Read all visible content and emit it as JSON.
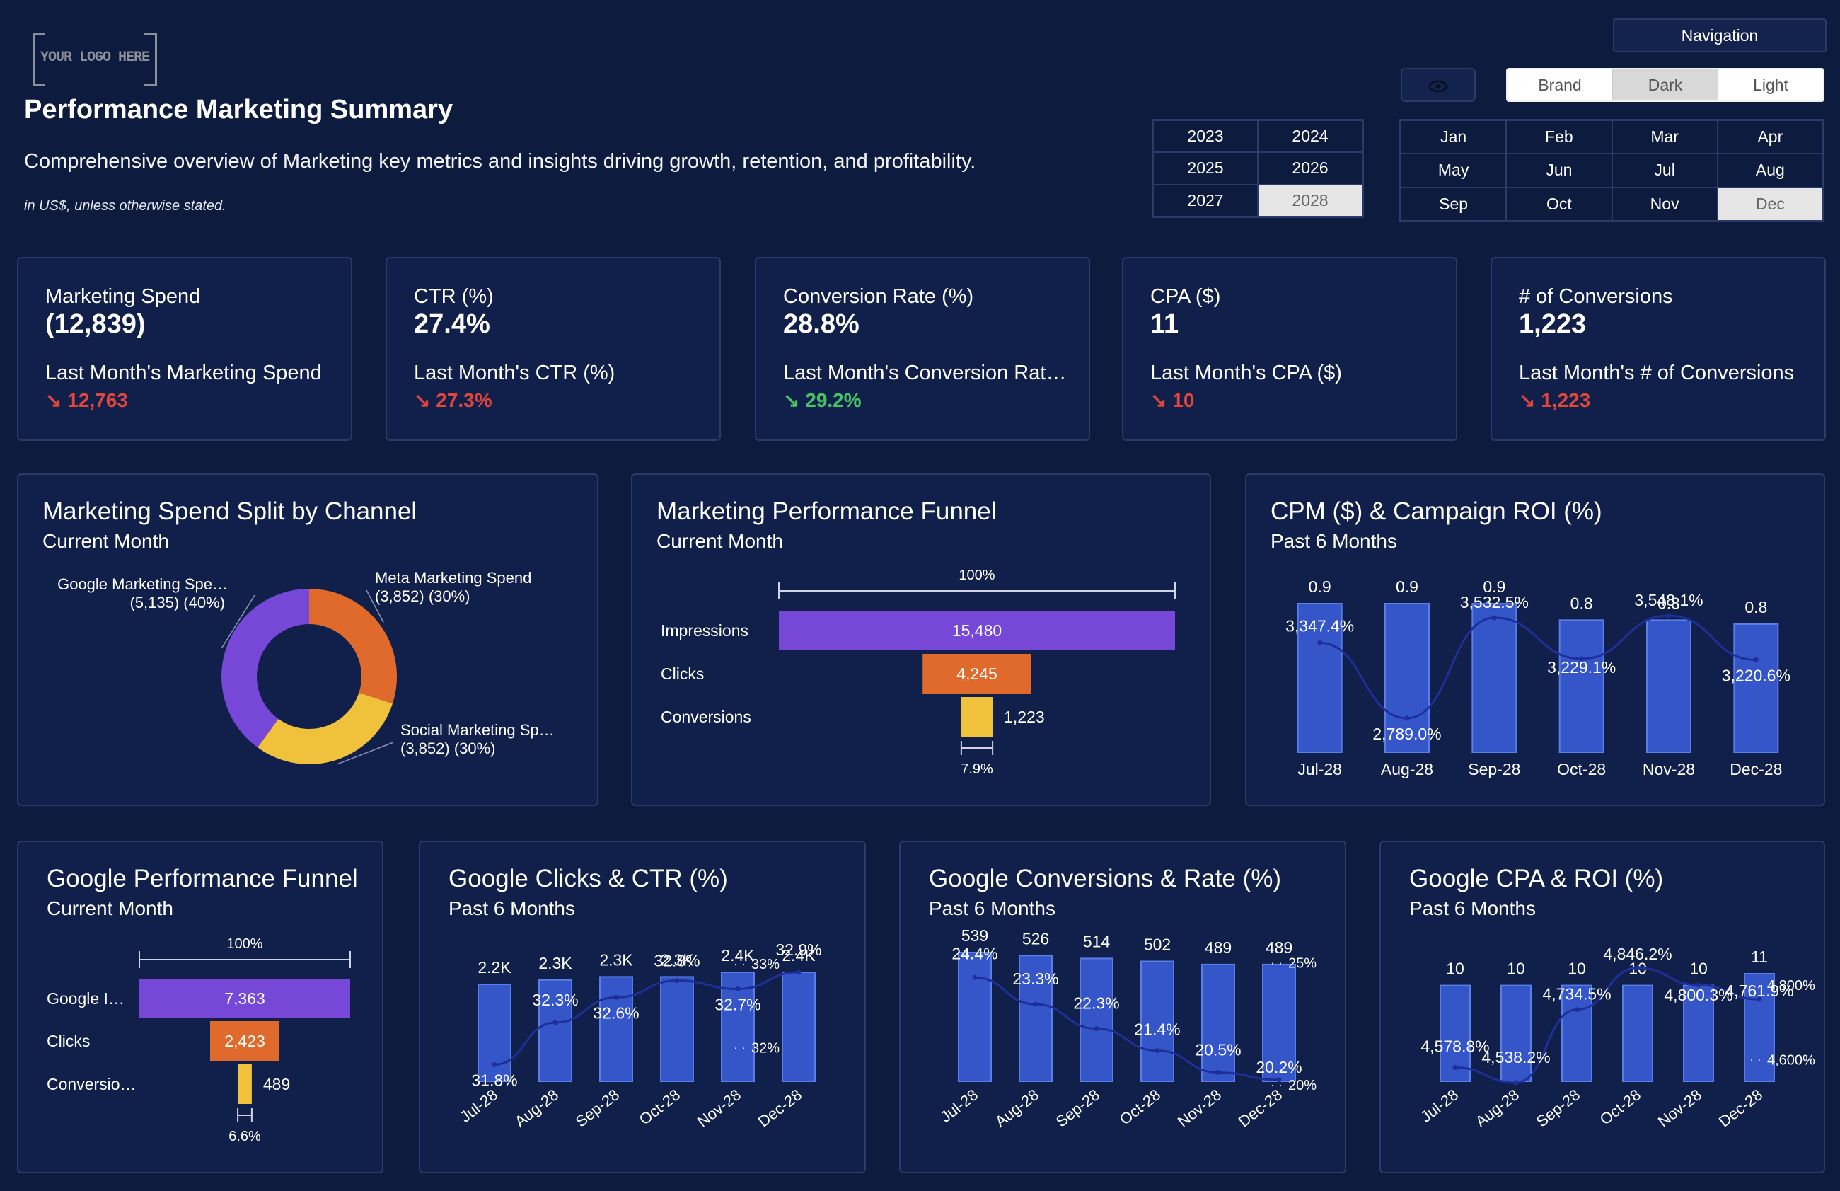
{
  "header": {
    "logo_text": "YOUR LOGO HERE",
    "title": "Performance Marketing Summary",
    "subtitle": "Comprehensive overview of Marketing key metrics and insights driving growth, retention, and profitability.",
    "note": "in US$, unless otherwise stated."
  },
  "controls": {
    "navigation_label": "Navigation",
    "eye_icon": "eye-icon",
    "themes": [
      {
        "label": "Brand",
        "selected": false
      },
      {
        "label": "Dark",
        "selected": true
      },
      {
        "label": "Light",
        "selected": false
      }
    ],
    "years": [
      {
        "label": "2023",
        "selected": false
      },
      {
        "label": "2024",
        "selected": false
      },
      {
        "label": "2025",
        "selected": false
      },
      {
        "label": "2026",
        "selected": false
      },
      {
        "label": "2027",
        "selected": false
      },
      {
        "label": "2028",
        "selected": true
      }
    ],
    "months": [
      {
        "label": "Jan",
        "selected": false
      },
      {
        "label": "Feb",
        "selected": false
      },
      {
        "label": "Mar",
        "selected": false
      },
      {
        "label": "Apr",
        "selected": false
      },
      {
        "label": "May",
        "selected": false
      },
      {
        "label": "Jun",
        "selected": false
      },
      {
        "label": "Jul",
        "selected": false
      },
      {
        "label": "Aug",
        "selected": false
      },
      {
        "label": "Sep",
        "selected": false
      },
      {
        "label": "Oct",
        "selected": false
      },
      {
        "label": "Nov",
        "selected": false
      },
      {
        "label": "Dec",
        "selected": true
      }
    ]
  },
  "kpis": [
    {
      "label": "Marketing Spend",
      "value": "(12,839)",
      "prev_label": "Last Month's Marketing Spend",
      "prev_value": "↘ 12,763",
      "trend": "red"
    },
    {
      "label": "CTR (%)",
      "value": "27.4%",
      "prev_label": "Last Month's CTR (%)",
      "prev_value": "↘ 27.3%",
      "trend": "red"
    },
    {
      "label": "Conversion Rate (%)",
      "value": "28.8%",
      "prev_label": "Last Month's Conversion Rate (%)",
      "prev_value": "↘ 29.2%",
      "trend": "green"
    },
    {
      "label": "CPA ($)",
      "value": "11",
      "prev_label": "Last Month's CPA ($)",
      "prev_value": "↘ 10",
      "trend": "red"
    },
    {
      "label": "# of Conversions",
      "value": "1,223",
      "prev_label": "Last Month's # of Conversions",
      "prev_value": "↘ 1,223",
      "trend": "red"
    }
  ],
  "colors": {
    "purple": "#7747d8",
    "orange": "#e06a2b",
    "yellow": "#f0c23b",
    "bar": "#3456c9",
    "bar_border": "#5a7de6",
    "line": "#1f2f9a",
    "red": "#e0463c",
    "green": "#46c463"
  },
  "chart_data": [
    {
      "id": "spend_split",
      "type": "pie",
      "title": "Marketing Spend Split by Channel",
      "subtitle": "Current Month",
      "slices": [
        {
          "name": "Meta Marketing Spend",
          "label": "Meta Marketing Spend",
          "value": 3852,
          "detail": "(3,852) (30%)",
          "color": "#e06a2b"
        },
        {
          "name": "Social Marketing Spend",
          "label": "Social Marketing Sp…",
          "value": 3852,
          "detail": "(3,852) (30%)",
          "color": "#f0c23b"
        },
        {
          "name": "Google Marketing Spend",
          "label": "Google Marketing Spe…",
          "value": 5135,
          "detail": "(5,135) (40%)",
          "color": "#7747d8"
        }
      ]
    },
    {
      "id": "funnel",
      "type": "bar",
      "title": "Marketing Performance Funnel",
      "subtitle": "Current Month",
      "categories": [
        "Impressions",
        "Clicks",
        "Conversions"
      ],
      "values": [
        15480,
        4245,
        1223
      ],
      "labels": [
        "15,480",
        "4,245",
        "1,223"
      ],
      "top_label": "100%",
      "bottom_label": "7.9%",
      "colors": [
        "#7747d8",
        "#e06a2b",
        "#f0c23b"
      ]
    },
    {
      "id": "cpm_roi",
      "type": "bar",
      "title": "CPM ($) & Campaign ROI (%)",
      "subtitle": "Past 6 Months",
      "categories": [
        "Jul-28",
        "Aug-28",
        "Sep-28",
        "Oct-28",
        "Nov-28",
        "Dec-28"
      ],
      "series": [
        {
          "name": "CPM ($)",
          "type": "bar",
          "values": [
            0.9,
            0.9,
            0.9,
            0.8,
            0.8,
            0.8
          ],
          "labels": [
            "0.9",
            "0.9",
            "0.9",
            "0.8",
            "0.8",
            "0.8"
          ]
        },
        {
          "name": "Campaign ROI (%)",
          "type": "line",
          "values": [
            3347.4,
            2789.0,
            3532.5,
            3229.1,
            3548.1,
            3220.6
          ],
          "labels": [
            "3,347.4%",
            "2,789.0%",
            "3,532.5%",
            "3,229.1%",
            "3,548.1%",
            "3,220.6%"
          ]
        }
      ]
    },
    {
      "id": "google_funnel",
      "type": "bar",
      "title": "Google Performance Funnel",
      "subtitle": "Current Month",
      "categories": [
        "Google I…",
        "Clicks",
        "Conversio…"
      ],
      "values": [
        7363,
        2423,
        489
      ],
      "labels": [
        "7,363",
        "2,423",
        "489"
      ],
      "top_label": "100%",
      "bottom_label": "6.6%",
      "colors": [
        "#7747d8",
        "#e06a2b",
        "#f0c23b"
      ]
    },
    {
      "id": "google_clicks",
      "type": "bar",
      "title": "Google Clicks & CTR (%)",
      "subtitle": "Past 6 Months",
      "categories": [
        "Jul-28",
        "Aug-28",
        "Sep-28",
        "Oct-28",
        "Nov-28",
        "Dec-28"
      ],
      "series": [
        {
          "name": "Clicks",
          "type": "bar",
          "values": [
            2200,
            2300,
            2300,
            2300,
            2400,
            2400
          ],
          "labels": [
            "2.2K",
            "2.3K",
            "2.3K",
            "2.3K",
            "2.4K",
            "2.4K"
          ]
        },
        {
          "name": "CTR (%)",
          "type": "line",
          "values": [
            31.8,
            32.3,
            32.6,
            32.8,
            32.7,
            32.9
          ],
          "labels": [
            "31.8%",
            "32.3%",
            "32.6%",
            "32.8%",
            "32.7%",
            "32.9%"
          ]
        }
      ],
      "y2_ticks": [
        {
          "value": 33,
          "label": "33%"
        },
        {
          "value": 32,
          "label": "32%"
        }
      ]
    },
    {
      "id": "google_conversions",
      "type": "bar",
      "title": "Google Conversions & Rate (%)",
      "subtitle": "Past 6 Months",
      "categories": [
        "Jul-28",
        "Aug-28",
        "Sep-28",
        "Oct-28",
        "Nov-28",
        "Dec-28"
      ],
      "series": [
        {
          "name": "Conversions",
          "type": "bar",
          "values": [
            539,
            526,
            514,
            502,
            489,
            489
          ],
          "labels": [
            "539",
            "526",
            "514",
            "502",
            "489",
            "489"
          ]
        },
        {
          "name": "Rate (%)",
          "type": "line",
          "values": [
            24.4,
            23.3,
            22.3,
            21.4,
            20.5,
            20.2
          ],
          "labels": [
            "24.4%",
            "23.3%",
            "22.3%",
            "21.4%",
            "20.5%",
            "20.2%"
          ]
        }
      ],
      "y2_ticks": [
        {
          "value": 25,
          "label": "25%"
        },
        {
          "value": 20,
          "label": "20%"
        }
      ]
    },
    {
      "id": "google_cpa",
      "type": "bar",
      "title": "Google CPA & ROI (%)",
      "subtitle": "Past 6 Months",
      "categories": [
        "Jul-28",
        "Aug-28",
        "Sep-28",
        "Oct-28",
        "Nov-28",
        "Dec-28"
      ],
      "series": [
        {
          "name": "CPA",
          "type": "bar",
          "values": [
            10,
            10,
            10,
            10,
            10,
            11
          ],
          "labels": [
            "10",
            "10",
            "10",
            "10",
            "10",
            "11"
          ]
        },
        {
          "name": "ROI (%)",
          "type": "line",
          "values": [
            4578.8,
            4538.2,
            4734.5,
            4846.2,
            4800.3,
            4761.9
          ],
          "labels": [
            "4,578.8%",
            "4,538.2%",
            "4,734.5%",
            "4,846.2%",
            "4,800.3%",
            "4,761.9%"
          ]
        }
      ],
      "y2_ticks": [
        {
          "value": 4800,
          "label": "4,800%"
        },
        {
          "value": 4600,
          "label": "4,600%"
        }
      ]
    }
  ]
}
